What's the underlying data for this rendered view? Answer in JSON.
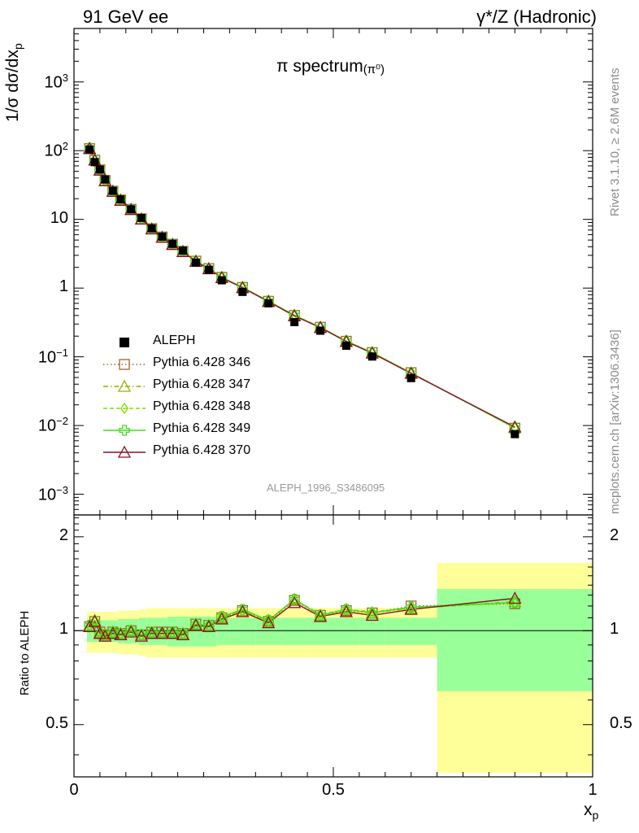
{
  "header": {
    "left": "91 GeV ee",
    "right": "γ*/Z (Hadronic)"
  },
  "side_text": {
    "rivet": "Rivet 3.1.10, ≥ 2.6M events",
    "mcplots": "mcplots.cern.ch [arXiv:1306.3436]"
  },
  "chart_data": {
    "type": "line",
    "title": "π spectrum",
    "title_sub": "(π⁰)",
    "analysis_id": "ALEPH_1996_S3486095",
    "ylabel": "1/σ dσ/dx",
    "ylabel_sub": "p",
    "xlabel": "x",
    "xlabel_sub": "p",
    "ratio_ylabel": "Ratio to ALEPH",
    "x_range": [
      0,
      1
    ],
    "y_range_log": [
      0.0005,
      6000
    ],
    "ratio_range": [
      0.34,
      2.35
    ],
    "x_ticks": [
      {
        "v": 0,
        "label": "0"
      },
      {
        "v": 0.5,
        "label": "0.5"
      },
      {
        "v": 1,
        "label": "1"
      }
    ],
    "y_ticks": [
      {
        "v": 0.001,
        "base": "10",
        "exp": "−3"
      },
      {
        "v": 0.01,
        "base": "10",
        "exp": "−2"
      },
      {
        "v": 0.1,
        "base": "10",
        "exp": "−1"
      },
      {
        "v": 1,
        "base": "1",
        "exp": ""
      },
      {
        "v": 10,
        "base": "10",
        "exp": ""
      },
      {
        "v": 100,
        "base": "10",
        "exp": "2"
      },
      {
        "v": 1000,
        "base": "10",
        "exp": "3"
      }
    ],
    "ratio_ticks": [
      {
        "v": 0.5,
        "label": "0.5"
      },
      {
        "v": 1,
        "label": "1"
      },
      {
        "v": 2,
        "label": "2"
      }
    ],
    "x": [
      0.03,
      0.04,
      0.05,
      0.06,
      0.075,
      0.09,
      0.11,
      0.13,
      0.15,
      0.17,
      0.19,
      0.21,
      0.235,
      0.26,
      0.285,
      0.325,
      0.375,
      0.425,
      0.475,
      0.525,
      0.575,
      0.65,
      0.85
    ],
    "bin_edges": [
      0.025,
      0.035,
      0.045,
      0.055,
      0.065,
      0.085,
      0.095,
      0.125,
      0.14,
      0.16,
      0.18,
      0.2,
      0.22,
      0.25,
      0.275,
      0.3,
      0.35,
      0.4,
      0.45,
      0.5,
      0.55,
      0.6,
      0.7,
      1.0
    ],
    "band_green": [
      0.08,
      0.08,
      0.08,
      0.08,
      0.08,
      0.09,
      0.09,
      0.1,
      0.1,
      0.1,
      0.11,
      0.11,
      0.11,
      0.11,
      0.1,
      0.1,
      0.1,
      0.1,
      0.1,
      0.1,
      0.1,
      0.1,
      0.36
    ],
    "band_yellow": [
      0.15,
      0.15,
      0.15,
      0.15,
      0.15,
      0.16,
      0.16,
      0.17,
      0.18,
      0.18,
      0.18,
      0.18,
      0.18,
      0.18,
      0.18,
      0.18,
      0.18,
      0.18,
      0.18,
      0.18,
      0.18,
      0.18,
      0.65
    ],
    "data": {
      "name": "ALEPH",
      "values": [
        104,
        68,
        53,
        38,
        26,
        19.5,
        14,
        10.5,
        7.4,
        5.6,
        4.4,
        3.5,
        2.35,
        1.85,
        1.3,
        0.88,
        0.6,
        0.32,
        0.24,
        0.145,
        0.101,
        0.049,
        0.0075
      ]
    },
    "series": [
      {
        "name": "Pythia 6.428 346",
        "color": "#a0672d",
        "marker": "square-open",
        "dash": "1.5,3",
        "ratio": [
          1.03,
          1.07,
          0.99,
          0.97,
          0.99,
          0.98,
          1.0,
          0.97,
          0.99,
          0.99,
          0.99,
          0.98,
          1.05,
          1.04,
          1.1,
          1.16,
          1.07,
          1.25,
          1.12,
          1.16,
          1.14,
          1.2,
          1.22
        ]
      },
      {
        "name": "Pythia 6.428 347",
        "color": "#9ab000",
        "marker": "triangle-open",
        "dash": "6,3,1.5,3",
        "ratio": [
          1.04,
          1.08,
          0.99,
          0.97,
          0.99,
          0.98,
          1.0,
          0.97,
          0.98,
          0.98,
          0.98,
          0.98,
          1.05,
          1.04,
          1.1,
          1.16,
          1.08,
          1.26,
          1.12,
          1.17,
          1.14,
          1.18,
          1.24
        ]
      },
      {
        "name": "Pythia 6.428 348",
        "color": "#7be000",
        "marker": "diamond-open",
        "dash": "5,3",
        "ratio": [
          1.04,
          1.08,
          0.99,
          0.97,
          0.99,
          0.98,
          1.0,
          0.97,
          0.99,
          0.99,
          0.99,
          0.98,
          1.05,
          1.04,
          1.11,
          1.16,
          1.07,
          1.26,
          1.13,
          1.17,
          1.15,
          1.18,
          1.23
        ]
      },
      {
        "name": "Pythia 6.428 349",
        "color": "#3fe01a",
        "marker": "cross-open",
        "dash": "",
        "ratio": [
          1.04,
          1.07,
          0.98,
          0.96,
          0.99,
          0.98,
          1.0,
          0.97,
          0.99,
          0.98,
          0.99,
          0.98,
          1.05,
          1.04,
          1.11,
          1.17,
          1.08,
          1.26,
          1.12,
          1.17,
          1.14,
          1.19,
          1.23
        ]
      },
      {
        "name": "Pythia 6.428 370",
        "color": "#8b1020",
        "marker": "triangle-open",
        "dash": "",
        "ratio": [
          1.03,
          1.07,
          0.98,
          0.96,
          0.98,
          0.97,
          0.99,
          0.96,
          0.98,
          0.98,
          0.98,
          0.97,
          1.04,
          1.03,
          1.09,
          1.15,
          1.06,
          1.23,
          1.11,
          1.15,
          1.12,
          1.17,
          1.27
        ]
      }
    ]
  }
}
